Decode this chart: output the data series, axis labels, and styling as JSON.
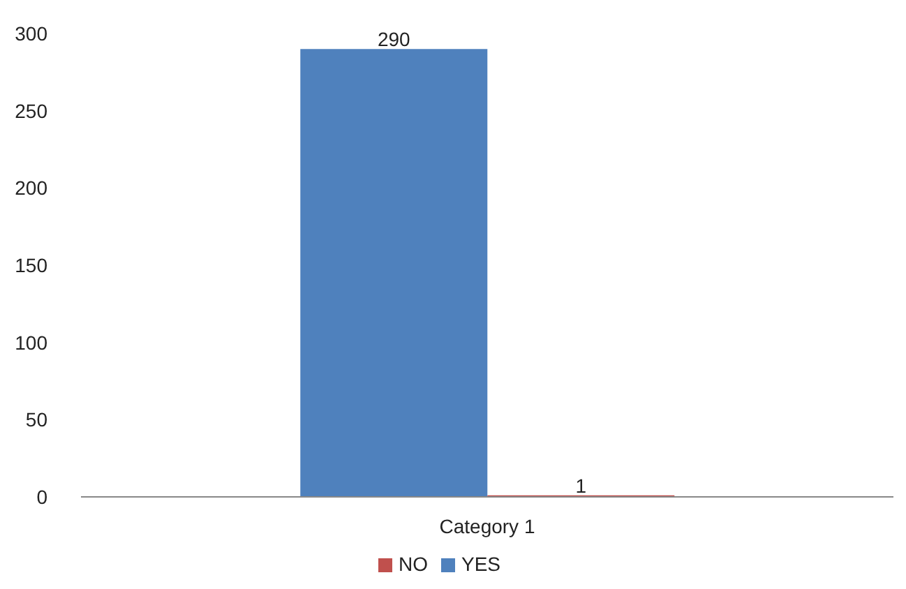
{
  "chart_data": {
    "type": "bar",
    "categories": [
      "Category 1"
    ],
    "series": [
      {
        "name": "YES",
        "color": "#4f81bd",
        "values": [
          290
        ]
      },
      {
        "name": "NO",
        "color": "#c0504d",
        "values": [
          1
        ]
      }
    ],
    "ylim": [
      0,
      300
    ],
    "yticks": [
      0,
      50,
      100,
      150,
      200,
      250,
      300
    ],
    "grid": false,
    "legend": "bottom",
    "data_labels": true
  }
}
